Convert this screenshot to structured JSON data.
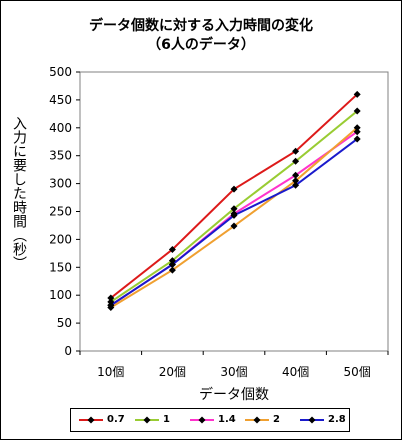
{
  "chart_data": {
    "type": "line",
    "title": "データ個数に対する入力時間の変化",
    "subtitle": "（6人のデータ）",
    "xlabel": "データ個数",
    "ylabel": "入力に要した時間（秒）",
    "categories": [
      "10個",
      "20個",
      "30個",
      "40個",
      "50個"
    ],
    "ylim": [
      0,
      500
    ],
    "yticks": [
      0,
      50,
      100,
      150,
      200,
      250,
      300,
      350,
      400,
      450,
      500
    ],
    "grid": false,
    "legend": "bottom",
    "series": [
      {
        "name": "0.7",
        "color": "#dd1a1a",
        "values": [
          95,
          182,
          290,
          358,
          460
        ]
      },
      {
        "name": "1",
        "color": "#99cc33",
        "values": [
          88,
          162,
          255,
          340,
          430
        ]
      },
      {
        "name": "1.4",
        "color": "#ff33cc",
        "values": [
          82,
          155,
          246,
          315,
          393
        ]
      },
      {
        "name": "2",
        "color": "#f0a030",
        "values": [
          78,
          145,
          224,
          305,
          400
        ]
      },
      {
        "name": "2.8",
        "color": "#1a1acc",
        "values": [
          82,
          155,
          243,
          297,
          380
        ]
      }
    ]
  }
}
